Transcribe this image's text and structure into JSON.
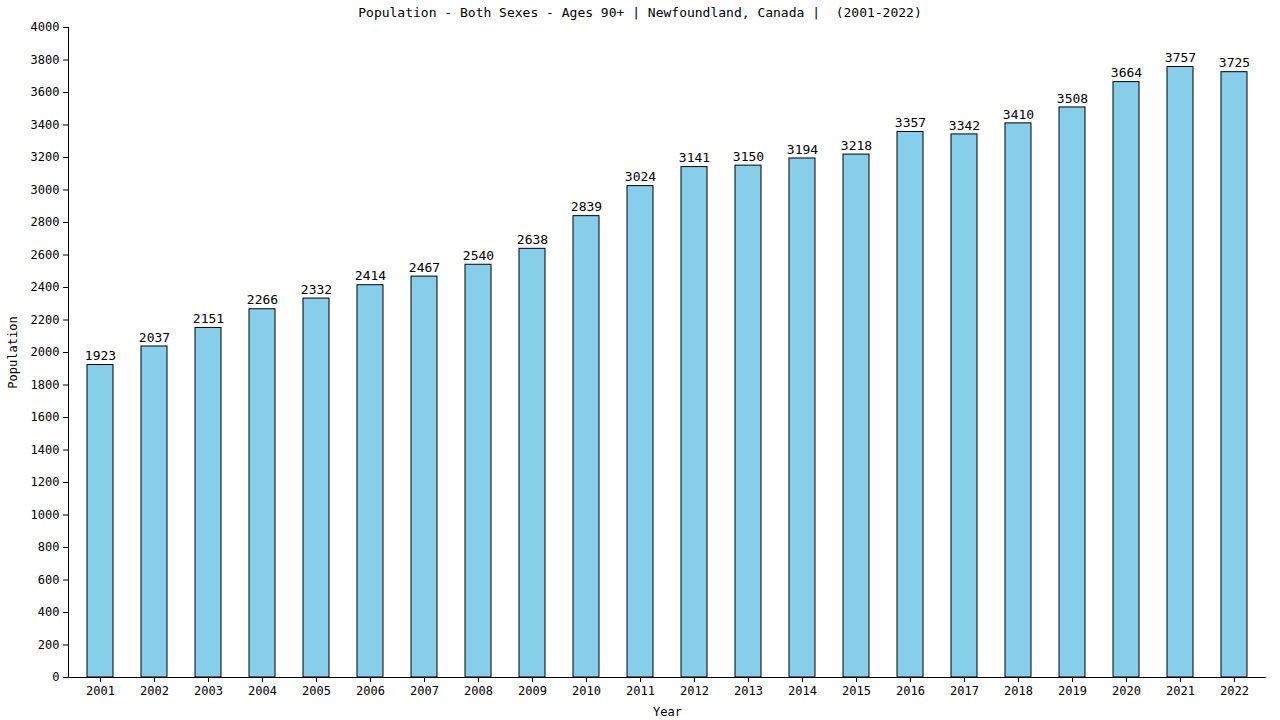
{
  "chart_data": {
    "type": "bar",
    "title": "Population - Both Sexes - Ages 90+ | Newfoundland, Canada |  (2001-2022)",
    "x_label": "Year",
    "y_label": "Population",
    "categories": [
      "2001",
      "2002",
      "2003",
      "2004",
      "2005",
      "2006",
      "2007",
      "2008",
      "2009",
      "2010",
      "2011",
      "2012",
      "2013",
      "2014",
      "2015",
      "2016",
      "2017",
      "2018",
      "2019",
      "2020",
      "2021",
      "2022"
    ],
    "values": [
      1923,
      2037,
      2151,
      2266,
      2332,
      2414,
      2467,
      2540,
      2638,
      2839,
      3024,
      3141,
      3150,
      3194,
      3218,
      3357,
      3342,
      3410,
      3508,
      3664,
      3757,
      3725
    ],
    "color": "#87ceeb",
    "ylim": [
      0,
      4000
    ],
    "yticks": [
      0,
      200,
      400,
      600,
      800,
      1000,
      1200,
      1400,
      1600,
      1800,
      2000,
      2200,
      2400,
      2600,
      2800,
      3000,
      3200,
      3400,
      3600,
      3800,
      4000
    ],
    "grid": false,
    "data_labels": true
  }
}
